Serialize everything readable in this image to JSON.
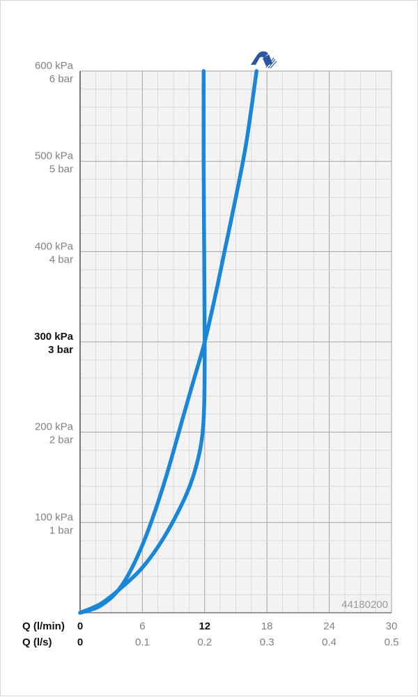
{
  "chart_data": {
    "type": "line",
    "product_code": "44180200",
    "x_axis": {
      "title_primary": "Q (l/min)",
      "title_secondary": "Q (l/s)",
      "range": [
        0,
        30
      ],
      "ticks_lmin": [
        "0",
        "6",
        "12",
        "18",
        "24",
        "30"
      ],
      "ticks_ls": [
        "0",
        "0.1",
        "0.2",
        "0.3",
        "0.4",
        "0.5"
      ],
      "highlight_tick": "12"
    },
    "y_axis": {
      "range": [
        0,
        600
      ],
      "ticks": [
        {
          "value": 100,
          "kpa": "100 kPa",
          "bar": "1 bar"
        },
        {
          "value": 200,
          "kpa": "200 kPa",
          "bar": "2 bar"
        },
        {
          "value": 300,
          "kpa": "300 kPa",
          "bar": "3 bar"
        },
        {
          "value": 400,
          "kpa": "400 kPa",
          "bar": "4 bar"
        },
        {
          "value": 500,
          "kpa": "500 kPa",
          "bar": "5 bar"
        },
        {
          "value": 600,
          "kpa": "600 kPa",
          "bar": "6 bar"
        }
      ],
      "highlight_tick": 300
    },
    "grid": true,
    "series": [
      {
        "color": "#1a86d8",
        "points": [
          [
            0,
            0
          ],
          [
            2,
            8
          ],
          [
            4,
            30
          ],
          [
            6,
            75
          ],
          [
            8,
            140
          ],
          [
            10,
            220
          ],
          [
            11,
            260
          ],
          [
            12,
            300
          ],
          [
            13,
            350
          ],
          [
            14,
            405
          ],
          [
            15,
            460
          ],
          [
            16,
            520
          ],
          [
            17,
            600
          ]
        ]
      },
      {
        "color": "#1a86d8",
        "points": [
          [
            0,
            0
          ],
          [
            2,
            10
          ],
          [
            4,
            28
          ],
          [
            6,
            50
          ],
          [
            8,
            82
          ],
          [
            10,
            125
          ],
          [
            11,
            155
          ],
          [
            11.7,
            190
          ],
          [
            11.95,
            230
          ],
          [
            12,
            300
          ],
          [
            11.95,
            400
          ],
          [
            11.9,
            500
          ],
          [
            11.9,
            600
          ]
        ]
      }
    ],
    "icon": "hand-shower-icon",
    "colors": {
      "curve": "#1a86d8",
      "icon": "#2b56a0"
    }
  }
}
